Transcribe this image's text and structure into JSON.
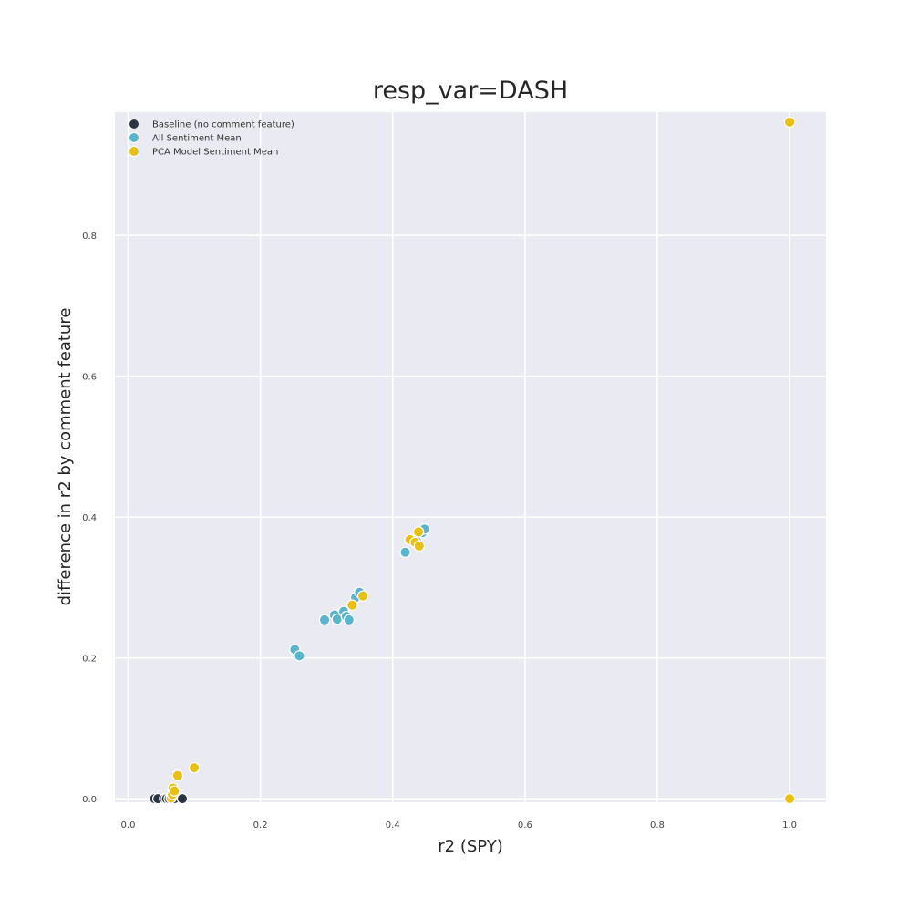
{
  "chart_data": {
    "type": "scatter",
    "title": "resp_var=DASH",
    "xlabel": "r2 (SPY)",
    "ylabel": "difference in r2 by comment feature",
    "xlim": [
      -0.02,
      1.055
    ],
    "ylim": [
      -0.005,
      0.975
    ],
    "xticks": [
      "0.0",
      "0.2",
      "0.4",
      "0.6",
      "0.8",
      "1.0"
    ],
    "yticks": [
      "0.0",
      "0.2",
      "0.4",
      "0.6",
      "0.8"
    ],
    "xtick_values": [
      0.0,
      0.2,
      0.4,
      0.6,
      0.8,
      1.0
    ],
    "ytick_values": [
      0.0,
      0.2,
      0.4,
      0.6,
      0.8
    ],
    "grid": true,
    "legend_position": "top-left",
    "background": "#eaeaf2",
    "series": [
      {
        "name": "Baseline (no comment feature)",
        "color": "#2b3444",
        "points": [
          [
            0.04,
            0.0
          ],
          [
            0.045,
            0.0
          ],
          [
            0.055,
            0.0
          ],
          [
            0.058,
            0.0
          ],
          [
            0.062,
            0.0
          ],
          [
            0.066,
            0.0
          ],
          [
            0.07,
            0.0
          ],
          [
            0.082,
            0.0
          ]
        ]
      },
      {
        "name": "All Sentiment Mean",
        "color": "#5ab4cf",
        "points": [
          [
            0.252,
            0.212
          ],
          [
            0.259,
            0.203
          ],
          [
            0.297,
            0.254
          ],
          [
            0.312,
            0.261
          ],
          [
            0.316,
            0.255
          ],
          [
            0.326,
            0.266
          ],
          [
            0.33,
            0.259
          ],
          [
            0.334,
            0.254
          ],
          [
            0.344,
            0.286
          ],
          [
            0.35,
            0.293
          ],
          [
            0.419,
            0.35
          ],
          [
            0.436,
            0.366
          ],
          [
            0.445,
            0.378
          ],
          [
            0.448,
            0.383
          ]
        ]
      },
      {
        "name": "PCA Model Sentiment Mean",
        "color": "#e9bf12",
        "points": [
          [
            0.065,
            0.001
          ],
          [
            0.067,
            0.006
          ],
          [
            0.068,
            0.015
          ],
          [
            0.07,
            0.011
          ],
          [
            0.075,
            0.033
          ],
          [
            0.1,
            0.044
          ],
          [
            0.339,
            0.275
          ],
          [
            0.355,
            0.288
          ],
          [
            0.426,
            0.368
          ],
          [
            0.434,
            0.364
          ],
          [
            0.439,
            0.379
          ],
          [
            0.44,
            0.359
          ],
          [
            1.0,
            0.961
          ],
          [
            1.0,
            0.0
          ]
        ]
      }
    ]
  }
}
